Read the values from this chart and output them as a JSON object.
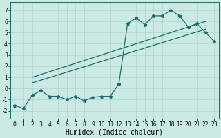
{
  "xlabel": "Humidex (Indice chaleur)",
  "bg_color": "#cceae4",
  "grid_color": "#aad4cc",
  "line_color": "#1a6b6b",
  "x_ticks": [
    0,
    1,
    2,
    3,
    4,
    5,
    6,
    7,
    8,
    9,
    10,
    11,
    12,
    13,
    14,
    15,
    16,
    17,
    18,
    19,
    20,
    21,
    22,
    23
  ],
  "y_ticks": [
    -2,
    -1,
    0,
    1,
    2,
    3,
    4,
    5,
    6,
    7
  ],
  "ylim": [
    -2.7,
    7.7
  ],
  "xlim": [
    -0.5,
    23.5
  ],
  "curve_x": [
    0,
    1,
    2,
    3,
    4,
    5,
    6,
    7,
    8,
    9,
    10,
    11,
    12,
    13,
    14,
    15,
    16,
    17,
    18,
    19,
    20,
    21,
    22,
    23
  ],
  "curve_y": [
    -1.5,
    -1.8,
    -0.6,
    -0.2,
    -0.7,
    -0.7,
    -1.0,
    -0.7,
    -1.1,
    -0.8,
    -0.7,
    -0.7,
    0.4,
    5.8,
    6.3,
    5.7,
    6.5,
    6.5,
    7.0,
    6.5,
    5.5,
    5.8,
    5.0,
    4.2
  ],
  "line1_x": [
    2,
    22
  ],
  "line1_y": [
    1.0,
    6.0
  ],
  "line2_x": [
    2,
    22
  ],
  "line2_y": [
    0.5,
    5.3
  ],
  "xlabel_fontsize": 7,
  "tick_fontsize": 5.5
}
